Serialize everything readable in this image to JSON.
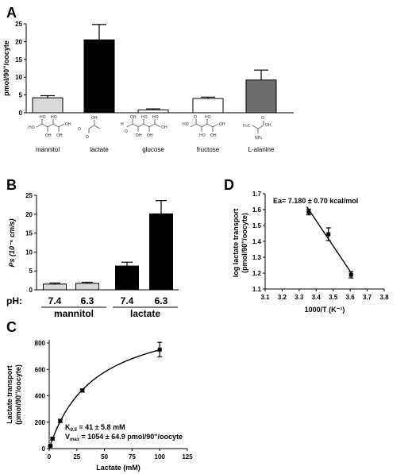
{
  "panel_labels": {
    "A": "A",
    "B": "B",
    "C": "C",
    "D": "D"
  },
  "chart_data": [
    {
      "panel": "A",
      "type": "bar",
      "ylabel": "pmol/90''/oocyte",
      "ylim": [
        0,
        25
      ],
      "yticks": [
        "0",
        "5",
        "10",
        "15",
        "20",
        "25"
      ],
      "categories": [
        "mannitol",
        "lactate",
        "glucose",
        "fructose",
        "L-alanine"
      ],
      "values": [
        4.2,
        20.5,
        0.8,
        4.0,
        9.2
      ],
      "errors": [
        0.6,
        4.3,
        0.3,
        0.4,
        2.8
      ],
      "colors": [
        "#d9d9d9",
        "#000000",
        "#ffffff",
        "#ffffff",
        "#6e6e6e"
      ]
    },
    {
      "panel": "B",
      "type": "bar",
      "ylabel": "Ps (10⁻⁶ cm/s)",
      "ylim": [
        0,
        25
      ],
      "yticks": [
        "0",
        "5",
        "10",
        "15",
        "20",
        "25"
      ],
      "row_label": "pH:",
      "categories": [
        "7.4",
        "6.3",
        "7.4",
        "6.3"
      ],
      "groups": [
        "mannitol",
        "lactate"
      ],
      "values": [
        1.5,
        1.7,
        6.3,
        20.1
      ],
      "errors": [
        0.3,
        0.3,
        1.0,
        3.5
      ],
      "colors": [
        "#d9d9d9",
        "#d9d9d9",
        "#000000",
        "#000000"
      ]
    },
    {
      "panel": "C",
      "type": "scatter",
      "xlabel": "Lactate (mM)",
      "ylabel": "Lactate transport (pmol/90''/oocyte)",
      "xlim": [
        0,
        125
      ],
      "ylim": [
        0,
        800
      ],
      "xticks": [
        "0",
        "25",
        "50",
        "75",
        "100",
        "125"
      ],
      "yticks": [
        "0",
        "200",
        "400",
        "600",
        "800"
      ],
      "x": [
        1,
        3,
        10,
        30,
        100
      ],
      "y": [
        20,
        75,
        210,
        440,
        750
      ],
      "errors": [
        5,
        10,
        12,
        12,
        55
      ],
      "fit": {
        "type": "michaelis-menten",
        "Vmax": 1054,
        "K": 41
      },
      "annotations": {
        "k_label": "K",
        "k_sub": "0.5",
        "k_value": " = 41 ± 5.8 mM",
        "v_label": "V",
        "v_sub": "max",
        "v_value": " = 1054 ± 64.9 pmol/90''/oocyte"
      }
    },
    {
      "panel": "D",
      "type": "scatter",
      "xlabel": "1000/T (K⁻¹)",
      "ylabel": "log lactate transport (pmol/90''/oocyte)",
      "xlim": [
        3.1,
        3.8
      ],
      "ylim": [
        1.1,
        1.7
      ],
      "xticks": [
        "3.1",
        "3.2",
        "3.3",
        "3.4",
        "3.5",
        "3.6",
        "3.7",
        "3.8"
      ],
      "yticks": [
        "1.1",
        "1.2",
        "1.3",
        "1.4",
        "1.5",
        "1.6",
        "1.7"
      ],
      "x": [
        3.356,
        3.472,
        3.605
      ],
      "y": [
        1.585,
        1.445,
        1.19
      ],
      "errors": [
        0.018,
        0.04,
        0.02
      ],
      "fit": {
        "type": "linear",
        "x_from": 3.345,
        "x_to": 3.615
      },
      "annotation": "Ea= 7.180 ± 0.70 kcal/mol"
    }
  ]
}
